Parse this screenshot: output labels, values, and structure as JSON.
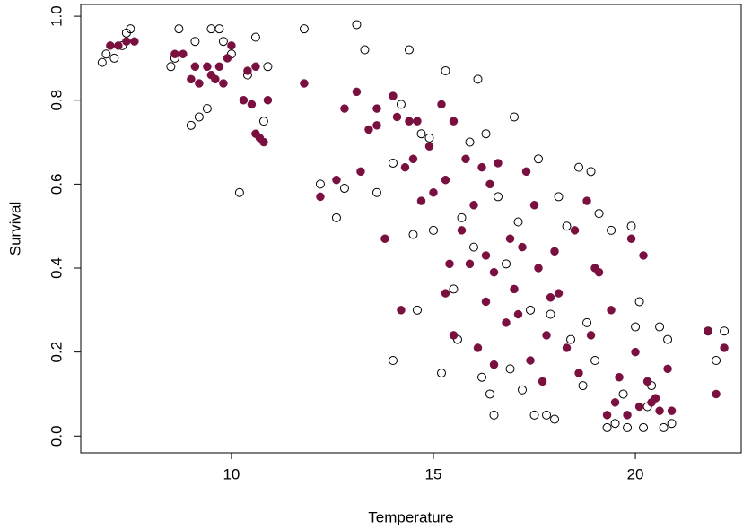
{
  "chart_data": {
    "type": "scatter",
    "x_label": "Temperature",
    "y_label": "Survival",
    "xlim": [
      6.27,
      22.62
    ],
    "ylim": [
      -0.04,
      1.028
    ],
    "xticks": [
      10,
      15,
      20
    ],
    "yticks": [
      {
        "value": 0,
        "label": "0.0"
      },
      {
        "value": 0.2,
        "label": "0.2"
      },
      {
        "value": 0.4,
        "label": "0.4"
      },
      {
        "value": 0.6,
        "label": "0.6"
      },
      {
        "value": 0.8,
        "label": "0.8"
      },
      {
        "value": 1,
        "label": "1.0"
      }
    ],
    "series": [
      {
        "color": "#000000",
        "marker": "open",
        "x": [
          6.8,
          6.9,
          7.1,
          7.3,
          7.4,
          7.5,
          8.5,
          8.6,
          8.7,
          9.0,
          9.1,
          9.2,
          9.4,
          9.5,
          9.7,
          9.8,
          10.0,
          10.2,
          10.4,
          10.6,
          10.8,
          10.9,
          11.8,
          12.2,
          12.6,
          12.8,
          13.1,
          13.3,
          13.6,
          14.0,
          14.0,
          14.2,
          14.4,
          14.5,
          14.6,
          14.7,
          14.9,
          15.0,
          15.2,
          15.3,
          15.5,
          15.6,
          15.7,
          15.9,
          16.0,
          16.1,
          16.2,
          16.3,
          16.4,
          16.5,
          16.6,
          16.8,
          16.9,
          17.0,
          17.1,
          17.2,
          17.4,
          17.5,
          17.6,
          17.8,
          17.9,
          18.0,
          18.1,
          18.3,
          18.4,
          18.6,
          18.7,
          18.8,
          18.9,
          19.0,
          19.1,
          19.3,
          19.4,
          19.5,
          19.7,
          19.8,
          19.9,
          20.0,
          20.1,
          20.2,
          20.3,
          20.4,
          20.6,
          20.7,
          20.8,
          20.9,
          21.8,
          22.0,
          22.2
        ],
        "values": [
          0.89,
          0.91,
          0.9,
          0.93,
          0.96,
          0.97,
          0.88,
          0.9,
          0.97,
          0.74,
          0.94,
          0.76,
          0.78,
          0.97,
          0.97,
          0.94,
          0.91,
          0.58,
          0.86,
          0.95,
          0.75,
          0.88,
          0.97,
          0.6,
          0.52,
          0.59,
          0.98,
          0.92,
          0.58,
          0.65,
          0.18,
          0.79,
          0.92,
          0.48,
          0.3,
          0.72,
          0.71,
          0.49,
          0.15,
          0.87,
          0.35,
          0.23,
          0.52,
          0.7,
          0.45,
          0.85,
          0.14,
          0.72,
          0.1,
          0.05,
          0.57,
          0.41,
          0.16,
          0.76,
          0.51,
          0.11,
          0.3,
          0.05,
          0.66,
          0.05,
          0.29,
          0.04,
          0.57,
          0.5,
          0.23,
          0.64,
          0.12,
          0.27,
          0.63,
          0.18,
          0.53,
          0.02,
          0.49,
          0.03,
          0.1,
          0.02,
          0.5,
          0.26,
          0.32,
          0.02,
          0.07,
          0.12,
          0.26,
          0.02,
          0.23,
          0.03,
          0.25,
          0.18,
          0.25
        ]
      },
      {
        "color": "#7a1040",
        "marker": "filled",
        "x": [
          7.0,
          7.2,
          7.4,
          7.6,
          8.6,
          8.8,
          9.0,
          9.1,
          9.2,
          9.4,
          9.5,
          9.6,
          9.7,
          9.8,
          9.9,
          10.0,
          10.4,
          10.3,
          10.5,
          10.6,
          10.6,
          10.7,
          10.8,
          10.9,
          11.8,
          12.2,
          12.6,
          12.8,
          13.1,
          13.2,
          13.4,
          13.6,
          13.6,
          13.8,
          14.0,
          14.1,
          14.2,
          14.3,
          14.4,
          14.5,
          14.6,
          14.7,
          14.9,
          15.0,
          15.2,
          15.3,
          15.3,
          15.4,
          15.5,
          15.5,
          15.7,
          15.8,
          15.9,
          16.0,
          16.1,
          16.2,
          16.3,
          16.3,
          16.4,
          16.5,
          16.5,
          16.6,
          16.8,
          16.9,
          17.0,
          17.1,
          17.2,
          17.3,
          17.4,
          17.5,
          17.6,
          17.7,
          17.8,
          17.9,
          18.0,
          18.1,
          18.3,
          18.5,
          18.6,
          18.8,
          18.9,
          19.0,
          19.1,
          19.3,
          19.4,
          19.5,
          19.6,
          19.8,
          19.9,
          20.0,
          20.1,
          20.2,
          20.3,
          20.4,
          20.5,
          20.6,
          20.8,
          20.9,
          21.8,
          22.0,
          22.2
        ],
        "values": [
          0.93,
          0.93,
          0.94,
          0.94,
          0.91,
          0.91,
          0.85,
          0.88,
          0.84,
          0.88,
          0.86,
          0.85,
          0.88,
          0.84,
          0.9,
          0.93,
          0.87,
          0.8,
          0.79,
          0.88,
          0.72,
          0.71,
          0.7,
          0.8,
          0.84,
          0.57,
          0.61,
          0.78,
          0.82,
          0.63,
          0.73,
          0.78,
          0.74,
          0.47,
          0.81,
          0.76,
          0.3,
          0.64,
          0.75,
          0.66,
          0.75,
          0.56,
          0.69,
          0.58,
          0.79,
          0.34,
          0.61,
          0.41,
          0.24,
          0.75,
          0.49,
          0.66,
          0.41,
          0.55,
          0.21,
          0.64,
          0.43,
          0.32,
          0.6,
          0.39,
          0.17,
          0.65,
          0.27,
          0.47,
          0.35,
          0.29,
          0.45,
          0.63,
          0.18,
          0.55,
          0.4,
          0.13,
          0.24,
          0.33,
          0.44,
          0.34,
          0.21,
          0.49,
          0.15,
          0.56,
          0.24,
          0.4,
          0.39,
          0.05,
          0.3,
          0.08,
          0.14,
          0.05,
          0.47,
          0.2,
          0.07,
          0.43,
          0.13,
          0.08,
          0.09,
          0.06,
          0.16,
          0.06,
          0.25,
          0.1,
          0.21
        ]
      }
    ]
  }
}
